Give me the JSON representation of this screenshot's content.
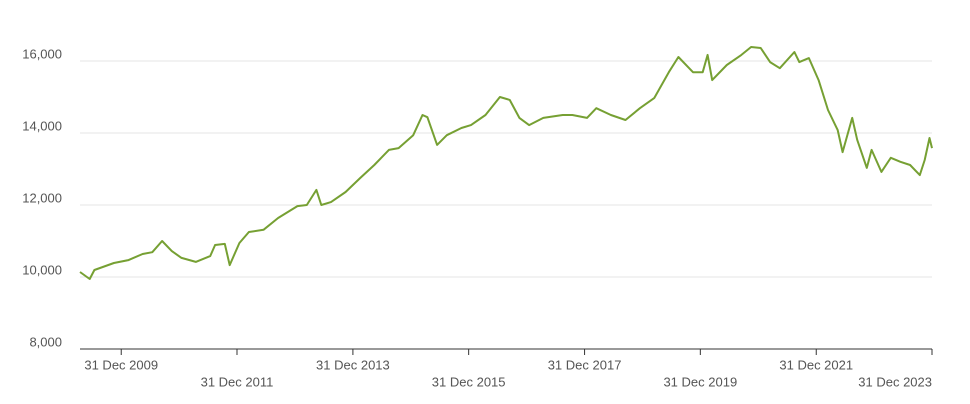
{
  "chart_data": {
    "type": "line",
    "x": [
      "2009-04-15",
      "2009-06-15",
      "2009-07-15",
      "2009-11-15",
      "2010-02-15",
      "2010-05-15",
      "2010-07-15",
      "2010-09-15",
      "2010-11-15",
      "2011-01-15",
      "2011-04-15",
      "2011-07-15",
      "2011-08-15",
      "2011-10-15",
      "2011-11-15",
      "2012-01-15",
      "2012-03-15",
      "2012-06-15",
      "2012-09-15",
      "2013-01-15",
      "2013-03-15",
      "2013-05-15",
      "2013-06-15",
      "2013-08-15",
      "2013-11-15",
      "2014-02-15",
      "2014-05-15",
      "2014-08-15",
      "2014-10-15",
      "2015-01-15",
      "2015-03-15",
      "2015-04-15",
      "2015-06-15",
      "2015-08-15",
      "2015-11-15",
      "2016-01-15",
      "2016-04-15",
      "2016-07-15",
      "2016-09-15",
      "2016-11-15",
      "2017-01-15",
      "2017-04-15",
      "2017-08-15",
      "2017-10-15",
      "2018-01-15",
      "2018-03-15",
      "2018-06-15",
      "2018-09-15",
      "2018-12-15",
      "2019-03-15",
      "2019-06-15",
      "2019-08-15",
      "2019-11-15",
      "2020-01-15",
      "2020-02-15",
      "2020-03-15",
      "2020-06-15",
      "2020-09-15",
      "2020-11-15",
      "2021-01-15",
      "2021-03-15",
      "2021-05-15",
      "2021-08-15",
      "2021-09-15",
      "2021-11-15",
      "2022-01-15",
      "2022-03-15",
      "2022-05-15",
      "2022-06-15",
      "2022-08-15",
      "2022-09-15",
      "2022-11-15",
      "2022-12-15",
      "2023-02-15",
      "2023-04-15",
      "2023-06-15",
      "2023-08-15",
      "2023-10-15",
      "2023-11-15",
      "2023-12-15",
      "2023-12-31"
    ],
    "series": [
      {
        "color": "#76a033",
        "values": [
          10140,
          9945,
          10195,
          10390,
          10470,
          10640,
          10690,
          11000,
          10720,
          10530,
          10420,
          10580,
          10890,
          10920,
          10330,
          10945,
          11250,
          11310,
          11640,
          11970,
          12000,
          12420,
          12000,
          12080,
          12360,
          12750,
          13110,
          13530,
          13580,
          13940,
          14500,
          14440,
          13670,
          13940,
          14140,
          14220,
          14500,
          15000,
          14920,
          14420,
          14220,
          14420,
          14500,
          14500,
          14420,
          14690,
          14500,
          14360,
          14690,
          14970,
          15690,
          16110,
          15690,
          15690,
          16170,
          15470,
          15890,
          16170,
          16390,
          16360,
          15970,
          15800,
          16250,
          15970,
          16080,
          15470,
          14640,
          14080,
          13470,
          14420,
          13810,
          13030,
          13530,
          12920,
          13310,
          13200,
          13110,
          12830,
          13250,
          13860,
          13580
        ]
      }
    ],
    "xlim": [
      "2009-04-15",
      "2023-12-31"
    ],
    "xticks": [
      {
        "value": "2009-12-31",
        "label": "31 Dec 2009"
      },
      {
        "value": "2011-12-31",
        "label": "31 Dec 2011"
      },
      {
        "value": "2013-12-31",
        "label": "31 Dec 2013"
      },
      {
        "value": "2015-12-31",
        "label": "31 Dec 2015"
      },
      {
        "value": "2017-12-31",
        "label": "31 Dec 2017"
      },
      {
        "value": "2019-12-31",
        "label": "31 Dec 2019"
      },
      {
        "value": "2021-12-31",
        "label": "31 Dec 2021"
      },
      {
        "value": "2023-12-31",
        "label": "31 Dec 2023"
      }
    ],
    "ylim": [
      8000,
      17000
    ],
    "yticks": [
      {
        "value": 8000,
        "label": "8,000"
      },
      {
        "value": 10000,
        "label": "10,000"
      },
      {
        "value": 12000,
        "label": "12,000"
      },
      {
        "value": 14000,
        "label": "14,000"
      },
      {
        "value": 16000,
        "label": "16,000"
      }
    ],
    "grid": true
  }
}
